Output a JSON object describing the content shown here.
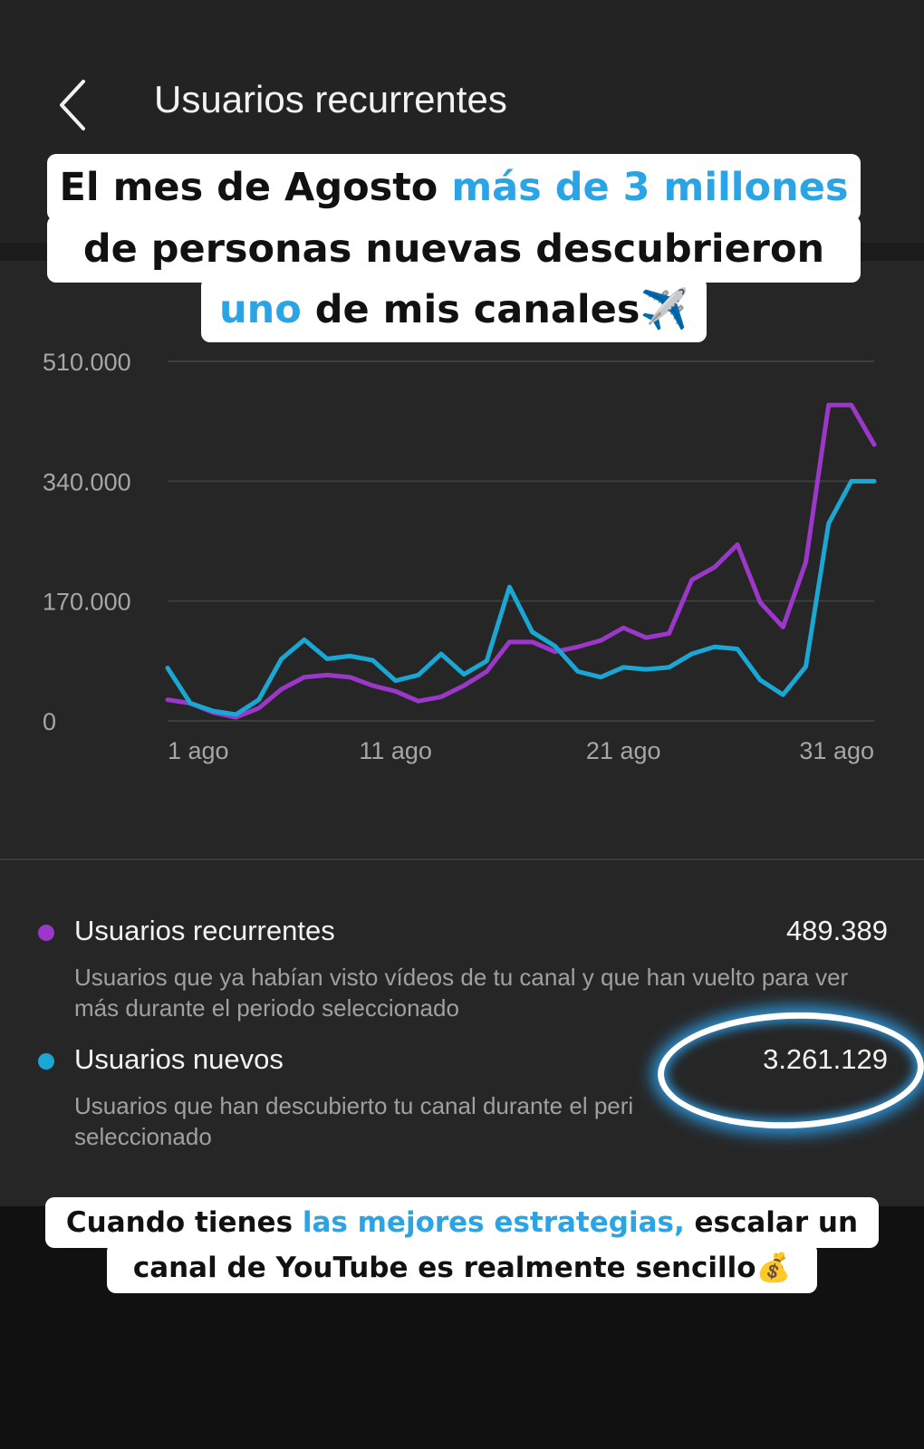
{
  "header": {
    "title": "Usuarios recurrentes",
    "back_icon": "chevron-left-icon"
  },
  "overlay_top": {
    "line1_a": "El mes de Agosto ",
    "line1_b": "más de 3 millones",
    "line2": "de personas nuevas descubrieron",
    "line3_a": "uno",
    "line3_b": " de mis canales",
    "line3_emoji": "✈️"
  },
  "chart_data": {
    "type": "line",
    "y_ticks": [
      "510.000",
      "340.000",
      "170.000",
      "0"
    ],
    "x_ticks": [
      "1 ago",
      "11 ago",
      "21 ago",
      "31 ago"
    ],
    "ylim": [
      0,
      510000
    ],
    "x": [
      1,
      2,
      3,
      4,
      5,
      6,
      7,
      8,
      9,
      10,
      11,
      12,
      13,
      14,
      15,
      16,
      17,
      18,
      19,
      20,
      21,
      22,
      23,
      24,
      25,
      26,
      27,
      28,
      29,
      30,
      31,
      32
    ],
    "series": [
      {
        "name": "Usuarios recurrentes",
        "color": "#9b37c9",
        "values": [
          30000,
          25000,
          12000,
          5000,
          18000,
          45000,
          62000,
          65000,
          62000,
          50000,
          42000,
          28000,
          34000,
          50000,
          70000,
          112000,
          112000,
          98000,
          105000,
          114000,
          132000,
          118000,
          124000,
          200000,
          218000,
          250000,
          168000,
          133000,
          225000,
          448000,
          448000,
          392000
        ]
      },
      {
        "name": "Usuarios nuevos",
        "color": "#1aa7d3",
        "values": [
          75000,
          25000,
          14000,
          9000,
          30000,
          88000,
          115000,
          88000,
          92000,
          86000,
          57000,
          65000,
          95000,
          66000,
          85000,
          190000,
          126000,
          106000,
          70000,
          62000,
          76000,
          73000,
          76000,
          95000,
          105000,
          102000,
          58000,
          37000,
          77000,
          280000,
          340000,
          340000
        ]
      }
    ]
  },
  "legend": {
    "recurring": {
      "label": "Usuarios recurrentes",
      "value": "489.389",
      "desc": "Usuarios que ya habían visto vídeos de tu canal y que han vuelto para ver más durante el periodo seleccionado",
      "color": "#9b37c9"
    },
    "new": {
      "label": "Usuarios nuevos",
      "value": "3.261.129",
      "desc": "Usuarios que han descubierto tu canal durante el peri",
      "desc2": "seleccionado",
      "color": "#1aa7d3"
    }
  },
  "overlay_bottom": {
    "line1_a": "Cuando tienes ",
    "line1_b": "las mejores estrategias,",
    "line1_c": " escalar un",
    "line2": "canal de YouTube es realmente sencillo",
    "line2_emoji": "💰"
  }
}
